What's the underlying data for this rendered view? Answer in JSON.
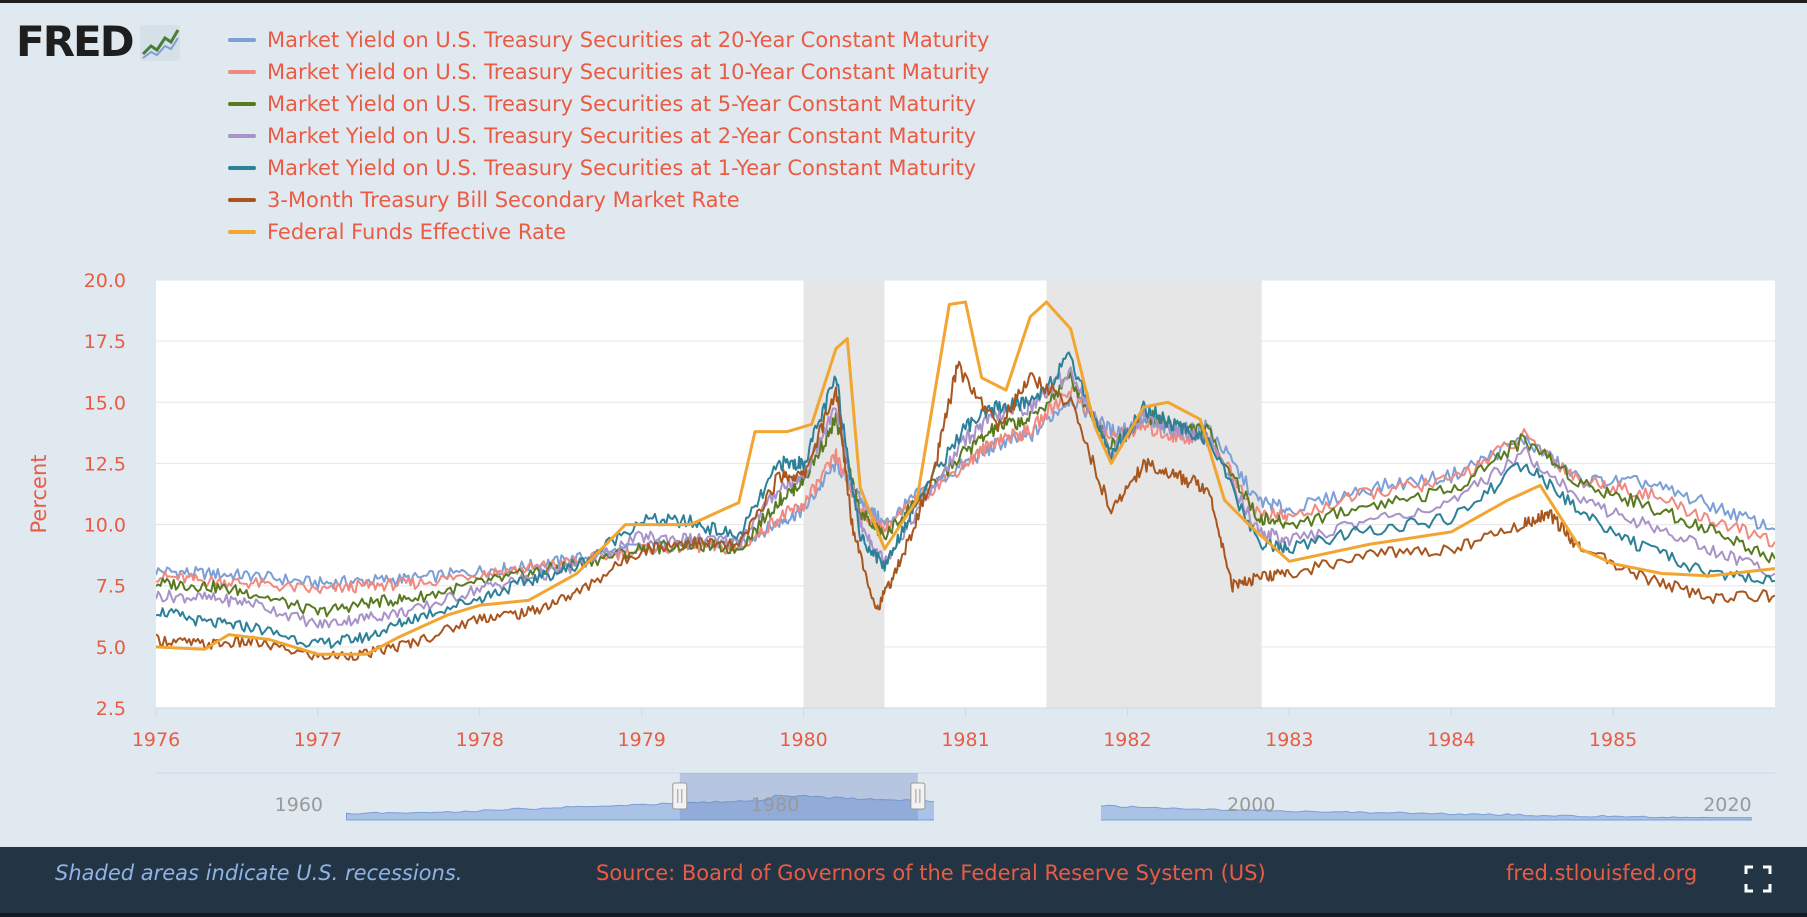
{
  "logo": {
    "text": "FRED",
    "icon": "fred-line-chart-icon"
  },
  "legend": [
    {
      "label": "Market Yield on U.S. Treasury Securities at 20-Year Constant Maturity",
      "color": "#7b9fd6"
    },
    {
      "label": "Market Yield on U.S. Treasury Securities at 10-Year Constant Maturity",
      "color": "#f08a80"
    },
    {
      "label": "Market Yield on U.S. Treasury Securities at 5-Year Constant Maturity",
      "color": "#5a7a22"
    },
    {
      "label": "Market Yield on U.S. Treasury Securities at 2-Year Constant Maturity",
      "color": "#a893c9"
    },
    {
      "label": "Market Yield on U.S. Treasury Securities at 1-Year Constant Maturity",
      "color": "#2c8199"
    },
    {
      "label": "3-Month Treasury Bill Secondary Market Rate",
      "color": "#a9561e"
    },
    {
      "label": "Federal Funds Effective Rate",
      "color": "#f2a531"
    }
  ],
  "chart_data": {
    "type": "line",
    "ylabel": "Percent",
    "xlabel": "",
    "ylim": [
      2.5,
      20.0
    ],
    "yticks": [
      "2.5",
      "5.0",
      "7.5",
      "10.0",
      "12.5",
      "15.0",
      "17.5",
      "20.0"
    ],
    "xlim": [
      1976.0,
      1986.0
    ],
    "xticks": [
      "1976",
      "1977",
      "1978",
      "1979",
      "1980",
      "1981",
      "1982",
      "1983",
      "1984",
      "1985"
    ],
    "grid": true,
    "recessions": [
      [
        1980.0,
        1980.5
      ],
      [
        1981.5,
        1982.83
      ]
    ],
    "series": [
      {
        "name": "Market Yield on U.S. Treasury Securities at 20-Year Constant Maturity",
        "color": "#7b9fd6",
        "points": [
          [
            1976,
            8.1
          ],
          [
            1976.3,
            8.0
          ],
          [
            1976.6,
            7.9
          ],
          [
            1977,
            7.6
          ],
          [
            1977.3,
            7.7
          ],
          [
            1977.6,
            7.8
          ],
          [
            1978,
            8.1
          ],
          [
            1978.3,
            8.3
          ],
          [
            1978.6,
            8.6
          ],
          [
            1979,
            9.1
          ],
          [
            1979.3,
            9.2
          ],
          [
            1979.6,
            9.2
          ],
          [
            1979.85,
            10.1
          ],
          [
            1980,
            10.6
          ],
          [
            1980.2,
            12.5
          ],
          [
            1980.35,
            11.0
          ],
          [
            1980.5,
            10.0
          ],
          [
            1980.7,
            11.2
          ],
          [
            1981,
            12.5
          ],
          [
            1981.2,
            13.3
          ],
          [
            1981.4,
            13.6
          ],
          [
            1981.65,
            15.2
          ],
          [
            1981.9,
            13.8
          ],
          [
            1982.1,
            14.2
          ],
          [
            1982.3,
            13.8
          ],
          [
            1982.5,
            14.0
          ],
          [
            1982.8,
            11.0
          ],
          [
            1983,
            10.6
          ],
          [
            1983.5,
            11.5
          ],
          [
            1984,
            12.0
          ],
          [
            1984.45,
            13.5
          ],
          [
            1984.8,
            11.8
          ],
          [
            1985.2,
            11.7
          ],
          [
            1985.6,
            10.8
          ],
          [
            1986,
            9.8
          ]
        ]
      },
      {
        "name": "Market Yield on U.S. Treasury Securities at 10-Year Constant Maturity",
        "color": "#f08a80",
        "points": [
          [
            1976,
            7.9
          ],
          [
            1976.3,
            7.7
          ],
          [
            1976.6,
            7.6
          ],
          [
            1977,
            7.3
          ],
          [
            1977.3,
            7.5
          ],
          [
            1977.6,
            7.6
          ],
          [
            1978,
            8.0
          ],
          [
            1978.3,
            8.2
          ],
          [
            1978.6,
            8.5
          ],
          [
            1979,
            9.0
          ],
          [
            1979.3,
            9.1
          ],
          [
            1979.6,
            9.0
          ],
          [
            1979.85,
            10.3
          ],
          [
            1980,
            10.8
          ],
          [
            1980.2,
            12.8
          ],
          [
            1980.35,
            10.5
          ],
          [
            1980.5,
            9.8
          ],
          [
            1980.7,
            11.0
          ],
          [
            1981,
            12.5
          ],
          [
            1981.2,
            13.5
          ],
          [
            1981.4,
            13.8
          ],
          [
            1981.65,
            15.6
          ],
          [
            1981.9,
            13.5
          ],
          [
            1982.1,
            14.0
          ],
          [
            1982.3,
            13.6
          ],
          [
            1982.5,
            13.5
          ],
          [
            1982.8,
            10.5
          ],
          [
            1983,
            10.3
          ],
          [
            1983.5,
            11.3
          ],
          [
            1984,
            11.8
          ],
          [
            1984.45,
            13.6
          ],
          [
            1984.8,
            11.8
          ],
          [
            1985.2,
            11.3
          ],
          [
            1985.6,
            10.2
          ],
          [
            1986,
            9.3
          ]
        ]
      },
      {
        "name": "Market Yield on U.S. Treasury Securities at 5-Year Constant Maturity",
        "color": "#5a7a22",
        "points": [
          [
            1976,
            7.6
          ],
          [
            1976.3,
            7.5
          ],
          [
            1976.6,
            7.2
          ],
          [
            1977,
            6.4
          ],
          [
            1977.3,
            6.8
          ],
          [
            1977.6,
            7.0
          ],
          [
            1978,
            7.6
          ],
          [
            1978.3,
            8.0
          ],
          [
            1978.6,
            8.4
          ],
          [
            1979,
            9.0
          ],
          [
            1979.3,
            9.2
          ],
          [
            1979.6,
            9.0
          ],
          [
            1979.85,
            11.0
          ],
          [
            1980,
            11.8
          ],
          [
            1980.2,
            14.3
          ],
          [
            1980.35,
            10.5
          ],
          [
            1980.5,
            9.5
          ],
          [
            1980.7,
            11.0
          ],
          [
            1981,
            13.0
          ],
          [
            1981.2,
            14.0
          ],
          [
            1981.4,
            14.3
          ],
          [
            1981.65,
            16.0
          ],
          [
            1981.9,
            13.2
          ],
          [
            1982.1,
            14.5
          ],
          [
            1982.3,
            14.0
          ],
          [
            1982.5,
            13.8
          ],
          [
            1982.8,
            10.3
          ],
          [
            1983,
            10.0
          ],
          [
            1983.5,
            10.8
          ],
          [
            1984,
            11.4
          ],
          [
            1984.45,
            13.5
          ],
          [
            1984.8,
            11.7
          ],
          [
            1985.2,
            10.8
          ],
          [
            1985.6,
            9.8
          ],
          [
            1986,
            8.6
          ]
        ]
      },
      {
        "name": "Market Yield on U.S. Treasury Securities at 2-Year Constant Maturity",
        "color": "#a893c9",
        "points": [
          [
            1976,
            7.1
          ],
          [
            1976.3,
            7.0
          ],
          [
            1976.6,
            6.8
          ],
          [
            1977,
            5.9
          ],
          [
            1977.3,
            6.2
          ],
          [
            1977.6,
            6.5
          ],
          [
            1978,
            7.4
          ],
          [
            1978.3,
            7.8
          ],
          [
            1978.6,
            8.3
          ],
          [
            1979,
            9.5
          ],
          [
            1979.3,
            9.4
          ],
          [
            1979.6,
            9.3
          ],
          [
            1979.85,
            11.5
          ],
          [
            1980,
            12.0
          ],
          [
            1980.2,
            14.8
          ],
          [
            1980.35,
            10.0
          ],
          [
            1980.5,
            8.5
          ],
          [
            1980.7,
            10.5
          ],
          [
            1981,
            13.5
          ],
          [
            1981.2,
            14.5
          ],
          [
            1981.4,
            14.8
          ],
          [
            1981.65,
            16.3
          ],
          [
            1981.9,
            13.0
          ],
          [
            1982.1,
            14.5
          ],
          [
            1982.3,
            13.8
          ],
          [
            1982.5,
            13.5
          ],
          [
            1982.8,
            9.8
          ],
          [
            1983,
            9.3
          ],
          [
            1983.5,
            10.2
          ],
          [
            1984,
            10.8
          ],
          [
            1984.45,
            13.0
          ],
          [
            1984.8,
            11.0
          ],
          [
            1985.2,
            10.0
          ],
          [
            1985.6,
            9.0
          ],
          [
            1986,
            8.0
          ]
        ]
      },
      {
        "name": "Market Yield on U.S. Treasury Securities at 1-Year Constant Maturity",
        "color": "#2c8199",
        "points": [
          [
            1976,
            6.5
          ],
          [
            1976.3,
            6.0
          ],
          [
            1976.6,
            5.8
          ],
          [
            1977,
            5.1
          ],
          [
            1977.3,
            5.4
          ],
          [
            1977.6,
            6.2
          ],
          [
            1978,
            7.0
          ],
          [
            1978.3,
            7.7
          ],
          [
            1978.6,
            8.3
          ],
          [
            1979,
            10.2
          ],
          [
            1979.3,
            10.1
          ],
          [
            1979.6,
            9.5
          ],
          [
            1979.85,
            12.5
          ],
          [
            1980,
            12.5
          ],
          [
            1980.2,
            16.0
          ],
          [
            1980.35,
            9.5
          ],
          [
            1980.5,
            8.3
          ],
          [
            1980.7,
            11.0
          ],
          [
            1981,
            14.0
          ],
          [
            1981.2,
            14.8
          ],
          [
            1981.4,
            15.0
          ],
          [
            1981.65,
            16.8
          ],
          [
            1981.9,
            12.8
          ],
          [
            1982.1,
            14.8
          ],
          [
            1982.3,
            14.0
          ],
          [
            1982.5,
            13.5
          ],
          [
            1982.8,
            9.3
          ],
          [
            1983,
            9.0
          ],
          [
            1983.5,
            9.8
          ],
          [
            1984,
            10.2
          ],
          [
            1984.45,
            12.5
          ],
          [
            1984.8,
            10.5
          ],
          [
            1985.2,
            9.0
          ],
          [
            1985.6,
            8.0
          ],
          [
            1986,
            7.7
          ]
        ]
      },
      {
        "name": "3-Month Treasury Bill Secondary Market Rate",
        "color": "#a9561e",
        "points": [
          [
            1976,
            5.3
          ],
          [
            1976.3,
            5.1
          ],
          [
            1976.6,
            5.2
          ],
          [
            1977,
            4.6
          ],
          [
            1977.3,
            4.7
          ],
          [
            1977.6,
            5.2
          ],
          [
            1978,
            6.2
          ],
          [
            1978.3,
            6.4
          ],
          [
            1978.6,
            7.2
          ],
          [
            1979,
            9.0
          ],
          [
            1979.3,
            9.3
          ],
          [
            1979.6,
            9.1
          ],
          [
            1979.85,
            12.0
          ],
          [
            1980,
            12.0
          ],
          [
            1980.2,
            15.5
          ],
          [
            1980.3,
            10.0
          ],
          [
            1980.45,
            6.5
          ],
          [
            1980.6,
            8.5
          ],
          [
            1980.8,
            12.0
          ],
          [
            1980.95,
            16.5
          ],
          [
            1981.2,
            14.0
          ],
          [
            1981.4,
            16.0
          ],
          [
            1981.65,
            15.0
          ],
          [
            1981.9,
            10.5
          ],
          [
            1982.1,
            12.5
          ],
          [
            1982.3,
            12.0
          ],
          [
            1982.5,
            11.5
          ],
          [
            1982.65,
            7.5
          ],
          [
            1982.8,
            7.8
          ],
          [
            1983,
            8.0
          ],
          [
            1983.5,
            8.8
          ],
          [
            1984,
            9.0
          ],
          [
            1984.45,
            10.0
          ],
          [
            1984.6,
            10.5
          ],
          [
            1984.8,
            9.0
          ],
          [
            1985.2,
            7.8
          ],
          [
            1985.6,
            7.0
          ],
          [
            1986,
            7.1
          ]
        ]
      },
      {
        "name": "Federal Funds Effective Rate",
        "color": "#f2a531",
        "points": [
          [
            1976,
            5.0
          ],
          [
            1976.3,
            4.9
          ],
          [
            1976.45,
            5.5
          ],
          [
            1976.7,
            5.3
          ],
          [
            1977,
            4.7
          ],
          [
            1977.3,
            4.7
          ],
          [
            1977.5,
            5.4
          ],
          [
            1977.8,
            6.3
          ],
          [
            1978,
            6.7
          ],
          [
            1978.3,
            6.9
          ],
          [
            1978.6,
            8.0
          ],
          [
            1978.9,
            10.0
          ],
          [
            1979.3,
            10.0
          ],
          [
            1979.6,
            10.9
          ],
          [
            1979.7,
            13.8
          ],
          [
            1979.9,
            13.8
          ],
          [
            1980.05,
            14.1
          ],
          [
            1980.2,
            17.2
          ],
          [
            1980.27,
            17.6
          ],
          [
            1980.35,
            11.5
          ],
          [
            1980.5,
            9.0
          ],
          [
            1980.7,
            11.0
          ],
          [
            1980.9,
            19.0
          ],
          [
            1981.0,
            19.1
          ],
          [
            1981.1,
            16.0
          ],
          [
            1981.25,
            15.5
          ],
          [
            1981.4,
            18.5
          ],
          [
            1981.5,
            19.1
          ],
          [
            1981.65,
            18.0
          ],
          [
            1981.8,
            14.0
          ],
          [
            1981.9,
            12.5
          ],
          [
            1982.1,
            14.8
          ],
          [
            1982.25,
            15.0
          ],
          [
            1982.45,
            14.3
          ],
          [
            1982.6,
            11.0
          ],
          [
            1982.75,
            10.0
          ],
          [
            1983,
            8.5
          ],
          [
            1983.5,
            9.2
          ],
          [
            1984,
            9.7
          ],
          [
            1984.35,
            11.0
          ],
          [
            1984.55,
            11.6
          ],
          [
            1984.8,
            9.0
          ],
          [
            1985.0,
            8.4
          ],
          [
            1985.3,
            8.0
          ],
          [
            1985.6,
            7.9
          ],
          [
            1986,
            8.2
          ]
        ]
      }
    ],
    "navigator": {
      "ticks": [
        "1960",
        "1980",
        "2000",
        "2020"
      ],
      "selected_range": [
        1976,
        1986
      ]
    }
  },
  "footer": {
    "note": "Shaded areas indicate U.S. recessions.",
    "source": "Source: Board of Governors of the Federal Reserve System (US)",
    "site": "fred.stlouisfed.org",
    "fullscreen_icon": "fullscreen-icon"
  },
  "colors": {
    "accent": "#ea5b43",
    "background": "#e1e9f0",
    "plot_bg": "#ffffff",
    "recession": "#e6e6e6",
    "footer_bg": "#233545"
  }
}
